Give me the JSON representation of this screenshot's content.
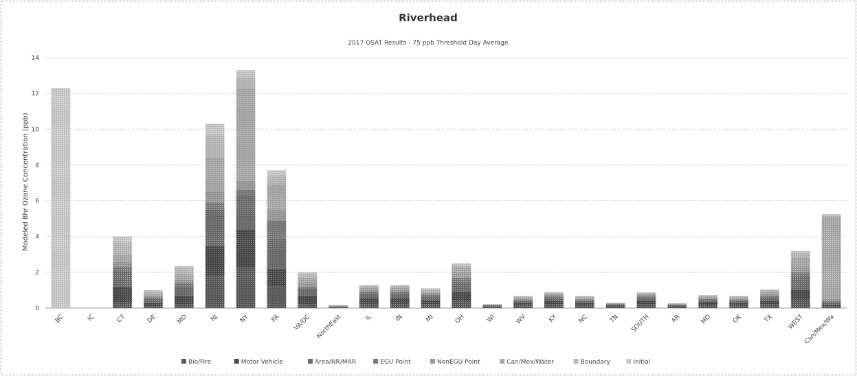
{
  "chart_data": {
    "type": "bar",
    "stacked": true,
    "title": "Riverhead",
    "subtitle": "2017 OSAT Results - 75 ppb Threshold Day Average",
    "xlabel": "",
    "ylabel": "Modeled 8hr Ozone Concentration (ppb)",
    "ylim": [
      0,
      14
    ],
    "yticks": [
      0,
      2,
      4,
      6,
      8,
      10,
      12,
      14
    ],
    "grid": true,
    "legend_position": "bottom",
    "categories": [
      "BC",
      "IC",
      "CT",
      "DE",
      "MD",
      "NJ",
      "NY",
      "PA",
      "VA/DC",
      "NorthEast",
      "IL",
      "IN",
      "MI",
      "OH",
      "WI",
      "WV",
      "KY",
      "NC",
      "TN",
      "SOUTH",
      "AR",
      "MO",
      "OK",
      "TX",
      "WEST",
      "Can/Mex/Wa"
    ],
    "series": [
      {
        "name": "Bio/Fire",
        "color": "#5a5a5a",
        "values": [
          0,
          0,
          0.3,
          0.1,
          0.2,
          1.8,
          2.3,
          1.2,
          0.2,
          0.03,
          0.25,
          0.25,
          0.2,
          0.4,
          0.05,
          0.15,
          0.2,
          0.15,
          0.08,
          0.2,
          0.05,
          0.15,
          0.15,
          0.2,
          0.5,
          0.1
        ]
      },
      {
        "name": "Motor Vehicle",
        "color": "#4a4a4a",
        "values": [
          0,
          0,
          0.9,
          0.2,
          0.5,
          1.7,
          2.1,
          1.0,
          0.5,
          0.03,
          0.3,
          0.3,
          0.25,
          0.5,
          0.05,
          0.15,
          0.2,
          0.15,
          0.07,
          0.2,
          0.07,
          0.2,
          0.15,
          0.2,
          0.5,
          0.1
        ]
      },
      {
        "name": "Area/NR/MAR",
        "color": "#6c6c6c",
        "values": [
          0,
          0,
          0.9,
          0.2,
          0.5,
          2.0,
          1.9,
          1.7,
          0.4,
          0.03,
          0.25,
          0.25,
          0.2,
          0.5,
          0.05,
          0.1,
          0.15,
          0.1,
          0.05,
          0.15,
          0.05,
          0.1,
          0.1,
          0.2,
          0.8,
          0.15
        ]
      },
      {
        "name": "EGU Point",
        "color": "#7a7a7a",
        "values": [
          0,
          0,
          0.2,
          0.1,
          0.2,
          0.4,
          0.3,
          1.0,
          0.1,
          0.02,
          0.1,
          0.1,
          0.1,
          0.3,
          0.02,
          0.05,
          0.1,
          0.05,
          0.03,
          0.1,
          0.03,
          0.05,
          0.05,
          0.1,
          0.2,
          0.05
        ]
      },
      {
        "name": "NonEGU Point",
        "color": "#9a9a9a",
        "values": [
          0,
          0,
          0.3,
          0.1,
          0.2,
          0.6,
          0.5,
          0.6,
          0.2,
          0.02,
          0.15,
          0.15,
          0.1,
          0.3,
          0.02,
          0.05,
          0.1,
          0.05,
          0.03,
          0.1,
          0.03,
          0.05,
          0.05,
          0.1,
          0.3,
          0.1
        ]
      },
      {
        "name": "Can/Mex/Water",
        "color": "#a9a9a9",
        "values": [
          0,
          0,
          0.4,
          0.1,
          0.3,
          1.9,
          5.2,
          1.4,
          0.3,
          0.02,
          0.1,
          0.1,
          0.1,
          0.3,
          0.01,
          0.1,
          0.05,
          0.1,
          0.02,
          0.05,
          0.02,
          0.1,
          0.1,
          0.1,
          0.5,
          4.6
        ]
      },
      {
        "name": "Boundary",
        "color": "#b9b9b9",
        "values": [
          0,
          0,
          0.7,
          0.15,
          0.35,
          1.3,
          0.6,
          0.5,
          0.2,
          0.01,
          0.1,
          0.1,
          0.1,
          0.1,
          0.01,
          0.05,
          0.05,
          0.05,
          0.01,
          0.05,
          0.01,
          0.05,
          0.05,
          0.1,
          0.3,
          0.1
        ]
      },
      {
        "name": "Initial",
        "color": "#c8c8c8",
        "values": [
          12.3,
          0,
          0.3,
          0.05,
          0.1,
          0.6,
          0.4,
          0.3,
          0.1,
          0.01,
          0.05,
          0.05,
          0.05,
          0.1,
          0.01,
          0.03,
          0.05,
          0.03,
          0.01,
          0.03,
          0.01,
          0.03,
          0.03,
          0.05,
          0.1,
          0.05
        ]
      }
    ]
  }
}
